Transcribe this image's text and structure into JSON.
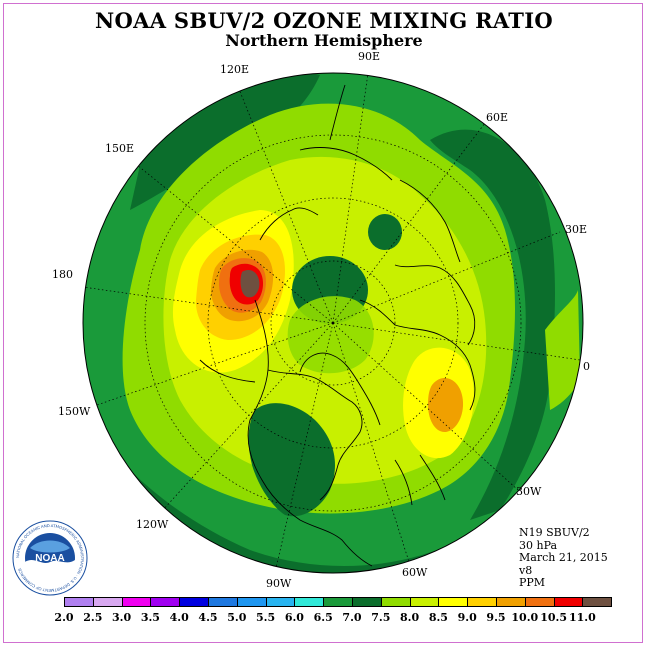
{
  "title": "NOAA SBUV/2 OZONE MIXING RATIO",
  "subtitle": "Northern Hemisphere",
  "longitude_labels": {
    "e90": "90E",
    "e120": "120E",
    "e60": "60E",
    "e150": "150E",
    "e30": "30E",
    "d180": "180",
    "d0": "0",
    "w150": "150W",
    "w30": "30W",
    "w120": "120W",
    "w60": "60W",
    "w90": "90W"
  },
  "info": {
    "satellite": "N19 SBUV/2",
    "pressure": "30 hPa",
    "date": "March 21, 2015",
    "version": "v8",
    "units": "PPM"
  },
  "logo": {
    "text": "NOAA",
    "ring_text": "NATIONAL OCEANIC AND ATMOSPHERIC ADMINISTRATION · U.S. DEPARTMENT OF COMMERCE"
  },
  "legend": {
    "labels": [
      "2.0",
      "2.5",
      "3.0",
      "3.5",
      "4.0",
      "4.5",
      "5.0",
      "5.5",
      "6.0",
      "6.5",
      "7.0",
      "7.5",
      "8.0",
      "8.5",
      "9.0",
      "9.5",
      "10.0",
      "10.5",
      "11.0"
    ],
    "colors": [
      "#b080f0",
      "#d8a8f0",
      "#f000f0",
      "#a000f0",
      "#0000e0",
      "#1e78e0",
      "#1e96f0",
      "#28b4f0",
      "#30e8d8",
      "#1a9a3a",
      "#0b6e2c",
      "#90dc00",
      "#c8f000",
      "#ffff00",
      "#ffd000",
      "#f0a000",
      "#f07010",
      "#f00000",
      "#6e5040"
    ]
  },
  "colors": {
    "outer_ring": "#1a9a3a",
    "dark_green": "#0b6e2c",
    "green_7_5": "#90dc00",
    "yellowgreen_8": "#c8f000",
    "yellow_8_5": "#ffff00",
    "orange_9": "#ffd000",
    "orange_9_5": "#f0a000",
    "orange_10": "#f07010",
    "red_10_5": "#f00000",
    "brown_11": "#6e5040"
  }
}
